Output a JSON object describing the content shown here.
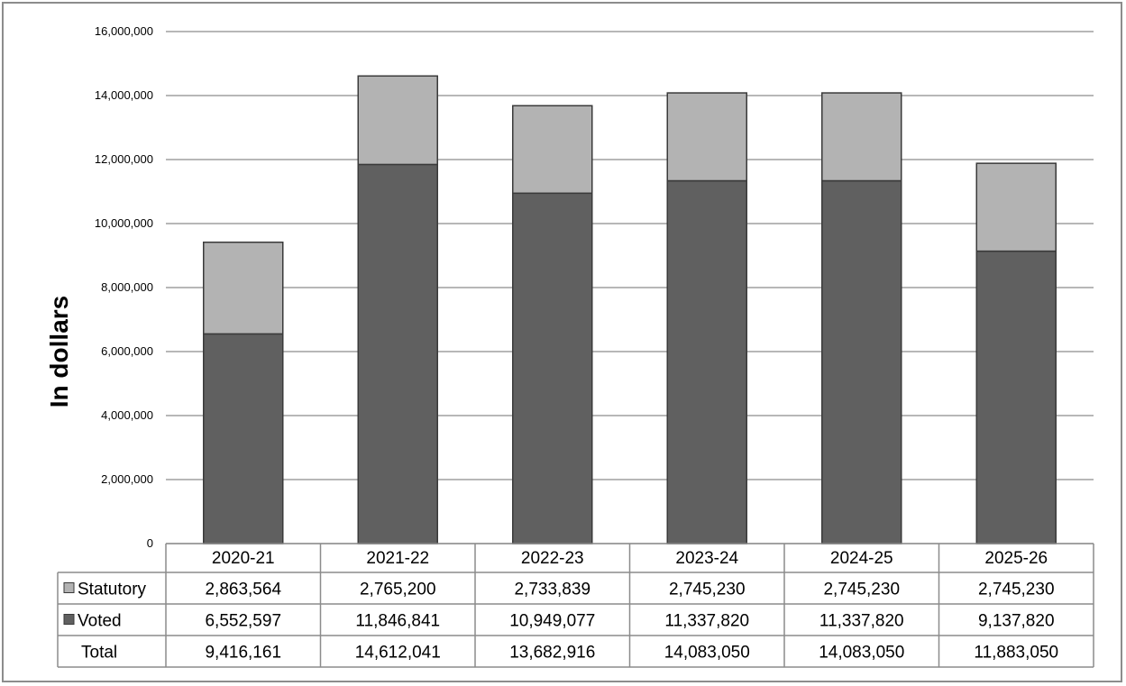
{
  "chart_data": {
    "type": "bar",
    "stacked": true,
    "ylabel": "In dollars",
    "ylim": [
      0,
      16000000
    ],
    "yticks": [
      0,
      2000000,
      4000000,
      6000000,
      8000000,
      10000000,
      12000000,
      14000000,
      16000000
    ],
    "ytick_labels": [
      "0",
      "2,000,000",
      "4,000,000",
      "6,000,000",
      "8,000,000",
      "10,000,000",
      "12,000,000",
      "14,000,000",
      "16,000,000"
    ],
    "categories": [
      "2020-21",
      "2021-22",
      "2022-23",
      "2023-24",
      "2024-25",
      "2025-26"
    ],
    "grid": true,
    "series": [
      {
        "name": "Voted",
        "color": "#606060",
        "values": [
          6552597,
          11846841,
          10949077,
          11337820,
          11337820,
          9137820
        ],
        "labels": [
          "6,552,597",
          "11,846,841",
          "10,949,077",
          "11,337,820",
          "11,337,820",
          "9,137,820"
        ]
      },
      {
        "name": "Statutory",
        "color": "#b3b3b3",
        "values": [
          2863564,
          2765200,
          2733839,
          2745230,
          2745230,
          2745230
        ],
        "labels": [
          "2,863,564",
          "2,765,200",
          "2,733,839",
          "2,745,230",
          "2,745,230",
          "2,745,230"
        ]
      }
    ],
    "table_rows": [
      {
        "name": "Statutory",
        "series": 1
      },
      {
        "name": "Voted",
        "series": 0
      },
      {
        "name": "Total",
        "labels": [
          "9,416,161",
          "14,612,041",
          "13,682,916",
          "14,083,050",
          "14,083,050",
          "11,883,050"
        ]
      }
    ]
  }
}
